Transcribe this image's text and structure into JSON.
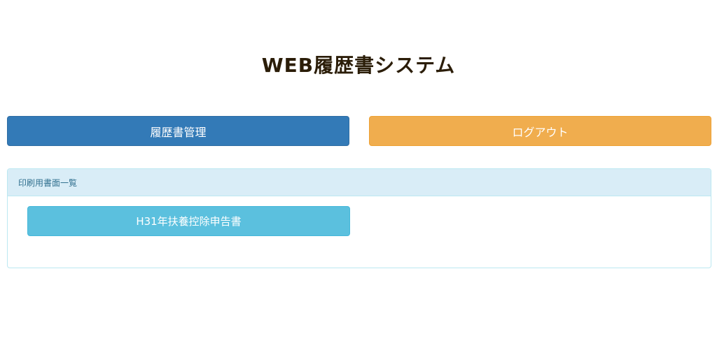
{
  "header": {
    "title": "WEB履歴書システム"
  },
  "nav": {
    "manage_label": "履歴書管理",
    "logout_label": "ログアウト"
  },
  "panel": {
    "heading": "印刷用書面一覧",
    "items": [
      {
        "label": "H31年扶養控除申告書"
      }
    ]
  },
  "colors": {
    "primary": "#337ab7",
    "warning": "#f0ad4e",
    "info": "#5bc0de",
    "panel_head": "#d9edf7"
  }
}
